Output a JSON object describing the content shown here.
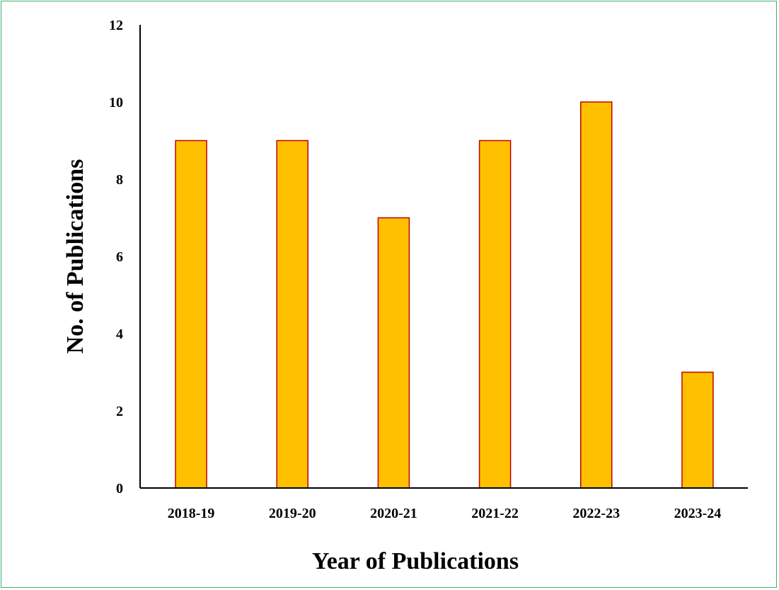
{
  "chart_data": {
    "type": "bar",
    "categories": [
      "2018-19",
      "2019-20",
      "2020-21",
      "2021-22",
      "2022-23",
      "2023-24"
    ],
    "values": [
      9,
      9,
      7,
      9,
      10,
      3
    ],
    "xlabel": "Year of Publications",
    "ylabel": "No. of Publications",
    "ylim": [
      0,
      12
    ],
    "yticks": [
      0,
      2,
      4,
      6,
      8,
      10,
      12
    ],
    "grid": false,
    "legend": "none",
    "colors": {
      "bar_fill": "#FFC000",
      "bar_stroke": "#C00000",
      "axis": "#000000",
      "frame": "#3CB371"
    }
  }
}
